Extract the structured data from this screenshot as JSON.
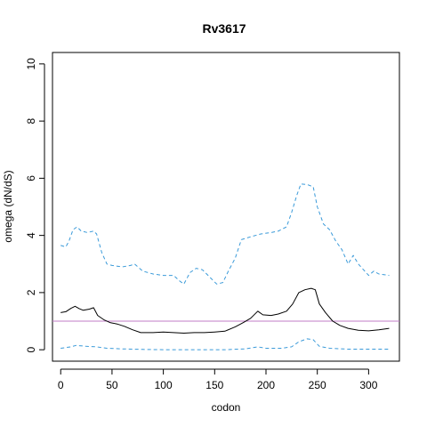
{
  "chart_data": {
    "type": "line",
    "title": "Rv3617",
    "xlabel": "codon",
    "ylabel": "omega (dN/dS)",
    "xlim": [
      -8,
      330
    ],
    "ylim": [
      -0.4,
      10.4
    ],
    "xticks": [
      0,
      50,
      100,
      150,
      200,
      250,
      300
    ],
    "yticks": [
      0,
      2,
      4,
      6,
      8,
      10
    ],
    "grid": false,
    "reference_line": {
      "y": 1,
      "color": "#c27cc7"
    },
    "series": [
      {
        "color": "#000000",
        "dash": "solid",
        "points": [
          [
            0,
            1.3
          ],
          [
            5,
            1.33
          ],
          [
            10,
            1.45
          ],
          [
            14,
            1.52
          ],
          [
            18,
            1.44
          ],
          [
            22,
            1.38
          ],
          [
            28,
            1.42
          ],
          [
            32,
            1.47
          ],
          [
            36,
            1.2
          ],
          [
            42,
            1.05
          ],
          [
            48,
            0.95
          ],
          [
            55,
            0.9
          ],
          [
            62,
            0.82
          ],
          [
            70,
            0.7
          ],
          [
            78,
            0.6
          ],
          [
            90,
            0.6
          ],
          [
            100,
            0.62
          ],
          [
            110,
            0.6
          ],
          [
            120,
            0.58
          ],
          [
            130,
            0.6
          ],
          [
            140,
            0.6
          ],
          [
            150,
            0.62
          ],
          [
            160,
            0.65
          ],
          [
            170,
            0.8
          ],
          [
            178,
            0.95
          ],
          [
            185,
            1.1
          ],
          [
            192,
            1.35
          ],
          [
            197,
            1.22
          ],
          [
            205,
            1.2
          ],
          [
            212,
            1.25
          ],
          [
            220,
            1.35
          ],
          [
            226,
            1.6
          ],
          [
            232,
            2.0
          ],
          [
            238,
            2.1
          ],
          [
            244,
            2.15
          ],
          [
            248,
            2.1
          ],
          [
            252,
            1.6
          ],
          [
            258,
            1.3
          ],
          [
            265,
            1.0
          ],
          [
            272,
            0.85
          ],
          [
            280,
            0.75
          ],
          [
            290,
            0.68
          ],
          [
            300,
            0.66
          ],
          [
            310,
            0.7
          ],
          [
            320,
            0.75
          ]
        ]
      },
      {
        "color": "#3a9ad9",
        "dash": "dashed",
        "points": [
          [
            0,
            3.65
          ],
          [
            5,
            3.6
          ],
          [
            8,
            3.8
          ],
          [
            12,
            4.2
          ],
          [
            16,
            4.3
          ],
          [
            20,
            4.15
          ],
          [
            26,
            4.1
          ],
          [
            32,
            4.15
          ],
          [
            35,
            4.05
          ],
          [
            40,
            3.4
          ],
          [
            45,
            3.0
          ],
          [
            50,
            2.95
          ],
          [
            60,
            2.9
          ],
          [
            68,
            2.95
          ],
          [
            72,
            3.0
          ],
          [
            80,
            2.75
          ],
          [
            90,
            2.65
          ],
          [
            100,
            2.6
          ],
          [
            110,
            2.6
          ],
          [
            116,
            2.4
          ],
          [
            120,
            2.3
          ],
          [
            126,
            2.7
          ],
          [
            132,
            2.85
          ],
          [
            138,
            2.8
          ],
          [
            145,
            2.55
          ],
          [
            152,
            2.3
          ],
          [
            158,
            2.35
          ],
          [
            164,
            2.8
          ],
          [
            170,
            3.2
          ],
          [
            176,
            3.85
          ],
          [
            185,
            3.95
          ],
          [
            195,
            4.05
          ],
          [
            205,
            4.1
          ],
          [
            212,
            4.15
          ],
          [
            220,
            4.3
          ],
          [
            225,
            4.8
          ],
          [
            230,
            5.4
          ],
          [
            234,
            5.8
          ],
          [
            240,
            5.78
          ],
          [
            246,
            5.7
          ],
          [
            250,
            5.0
          ],
          [
            256,
            4.4
          ],
          [
            262,
            4.2
          ],
          [
            268,
            3.8
          ],
          [
            274,
            3.5
          ],
          [
            280,
            3.0
          ],
          [
            285,
            3.3
          ],
          [
            290,
            3.0
          ],
          [
            295,
            2.8
          ],
          [
            300,
            2.6
          ],
          [
            305,
            2.75
          ],
          [
            310,
            2.65
          ],
          [
            320,
            2.6
          ]
        ]
      },
      {
        "color": "#3a9ad9",
        "dash": "dashed",
        "points": [
          [
            0,
            0.05
          ],
          [
            10,
            0.1
          ],
          [
            15,
            0.15
          ],
          [
            25,
            0.12
          ],
          [
            35,
            0.1
          ],
          [
            45,
            0.05
          ],
          [
            60,
            0.03
          ],
          [
            80,
            0.01
          ],
          [
            100,
            0.0
          ],
          [
            130,
            0.0
          ],
          [
            160,
            0.0
          ],
          [
            180,
            0.03
          ],
          [
            192,
            0.1
          ],
          [
            200,
            0.05
          ],
          [
            215,
            0.05
          ],
          [
            225,
            0.1
          ],
          [
            232,
            0.28
          ],
          [
            240,
            0.38
          ],
          [
            246,
            0.35
          ],
          [
            252,
            0.12
          ],
          [
            262,
            0.05
          ],
          [
            280,
            0.02
          ],
          [
            300,
            0.02
          ],
          [
            320,
            0.02
          ]
        ]
      }
    ]
  }
}
